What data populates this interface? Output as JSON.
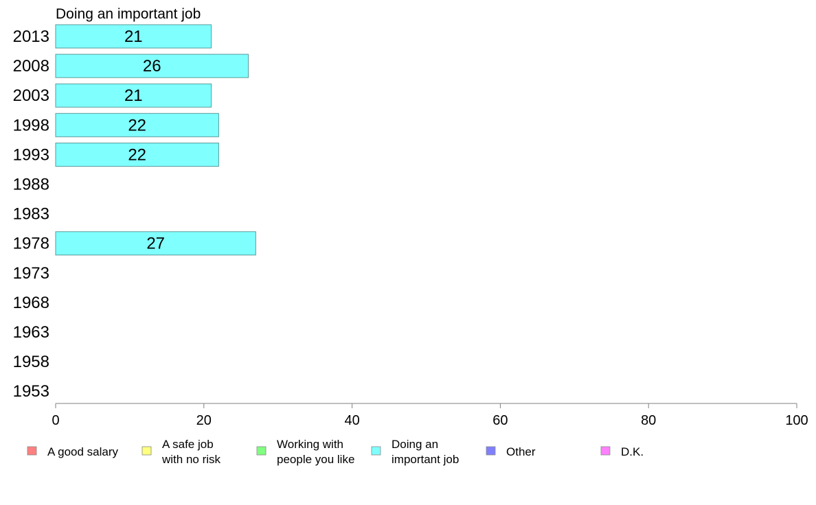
{
  "chart_data": {
    "type": "bar",
    "orientation": "horizontal",
    "title": "Doing an important job",
    "categories": [
      "2013",
      "2008",
      "2003",
      "1998",
      "1993",
      "1988",
      "1983",
      "1978",
      "1973",
      "1968",
      "1963",
      "1958",
      "1953"
    ],
    "series": [
      {
        "name": "Doing an important job",
        "values": [
          21,
          26,
          21,
          22,
          22,
          null,
          null,
          27,
          null,
          null,
          null,
          null,
          null
        ],
        "color": "#80ffff"
      }
    ],
    "xlim": [
      0,
      100
    ],
    "xticks": [
      0,
      20,
      40,
      60,
      80,
      100
    ],
    "grid": false,
    "legend_position": "bottom",
    "legend": [
      {
        "label": [
          "A good salary"
        ],
        "color": "#ff8080"
      },
      {
        "label": [
          "A safe job",
          "with no risk"
        ],
        "color": "#ffff80"
      },
      {
        "label": [
          "Working with",
          "people you like"
        ],
        "color": "#80ff80"
      },
      {
        "label": [
          "Doing an",
          "important job"
        ],
        "color": "#80ffff"
      },
      {
        "label": [
          "Other"
        ],
        "color": "#8080ff"
      },
      {
        "label": [
          "D.K."
        ],
        "color": "#ff80ff"
      }
    ]
  }
}
